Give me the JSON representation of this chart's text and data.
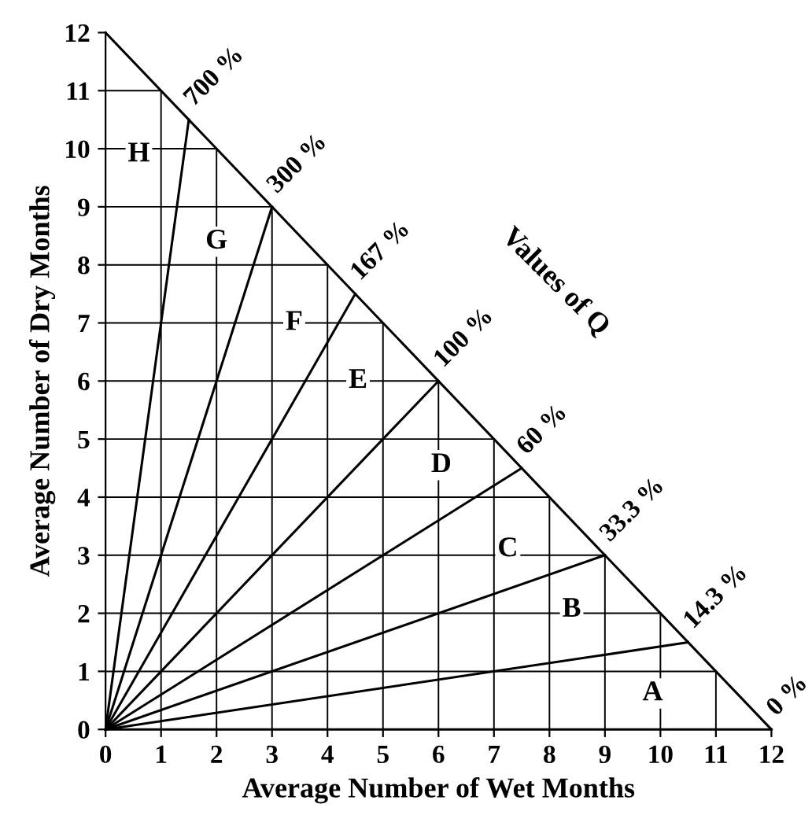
{
  "chart_data": {
    "type": "line",
    "xlabel": "Average Number of Wet Months",
    "ylabel": "Average Number of Dry Months",
    "xlim": [
      0,
      12
    ],
    "ylim": [
      0,
      12
    ],
    "xticks": [
      0,
      1,
      2,
      3,
      4,
      5,
      6,
      7,
      8,
      9,
      10,
      11,
      12
    ],
    "yticks": [
      0,
      1,
      2,
      3,
      4,
      5,
      6,
      7,
      8,
      9,
      10,
      11,
      12
    ],
    "grid": true,
    "legend": false,
    "marker": "none",
    "line_style": "solid",
    "series": [
      {
        "name": "700 %",
        "color": "#000000",
        "x": [
          0,
          1.5
        ],
        "values": [
          0,
          10.5
        ]
      },
      {
        "name": "300 %",
        "color": "#000000",
        "x": [
          0,
          3
        ],
        "values": [
          0,
          9
        ]
      },
      {
        "name": "167 %",
        "color": "#000000",
        "x": [
          0,
          4.5
        ],
        "values": [
          0,
          7.5
        ]
      },
      {
        "name": "100 %",
        "color": "#000000",
        "x": [
          0,
          6
        ],
        "values": [
          0,
          6
        ]
      },
      {
        "name": "60 %",
        "color": "#000000",
        "x": [
          0,
          7.5
        ],
        "values": [
          0,
          4.5
        ]
      },
      {
        "name": "33.3 %",
        "color": "#000000",
        "x": [
          0,
          9
        ],
        "values": [
          0,
          3
        ]
      },
      {
        "name": "14.3 %",
        "color": "#000000",
        "x": [
          0,
          10.5
        ],
        "values": [
          0,
          1.5
        ]
      },
      {
        "name": "0 %",
        "color": "#000000",
        "x": [
          0,
          12
        ],
        "values": [
          0,
          0
        ]
      },
      {
        "color": "#000000",
        "x": [
          0,
          12
        ],
        "values": [
          12,
          0
        ]
      }
    ],
    "annotations": [
      {
        "text": "H",
        "x": 0.6,
        "y": 9.9
      },
      {
        "text": "G",
        "x": 2.0,
        "y": 8.4
      },
      {
        "text": "F",
        "x": 3.4,
        "y": 7.0
      },
      {
        "text": "E",
        "x": 4.55,
        "y": 6.0
      },
      {
        "text": "D",
        "x": 6.05,
        "y": 4.55
      },
      {
        "text": "C",
        "x": 7.25,
        "y": 3.1
      },
      {
        "text": "B",
        "x": 8.4,
        "y": 2.06
      },
      {
        "text": "A",
        "x": 9.86,
        "y": 0.62
      },
      "Values of Q"
    ]
  }
}
